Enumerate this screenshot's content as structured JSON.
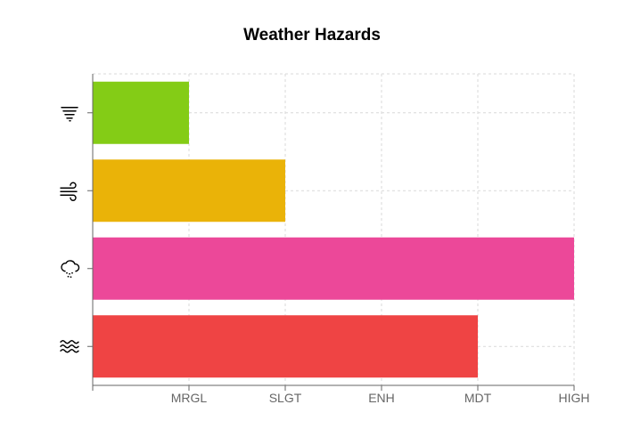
{
  "chart_data": {
    "type": "bar",
    "orientation": "horizontal",
    "title": "Weather Hazards",
    "xlabel": "",
    "ylabel": "",
    "x_ticks": [
      "",
      "MRGL",
      "SLGT",
      "ENH",
      "MDT",
      "HIGH"
    ],
    "xlim": [
      0,
      5
    ],
    "grid": true,
    "legend": "none",
    "categories": [
      {
        "icon": "tornado-icon",
        "value": 1,
        "level": "MRGL",
        "color": "#84cc16"
      },
      {
        "icon": "wind-icon",
        "value": 2,
        "level": "SLGT",
        "color": "#eab308"
      },
      {
        "icon": "hail-icon",
        "value": 5,
        "level": "HIGH",
        "color": "#ec4899"
      },
      {
        "icon": "flood-icon",
        "value": 4,
        "level": "MDT",
        "color": "#ef4444"
      }
    ]
  }
}
